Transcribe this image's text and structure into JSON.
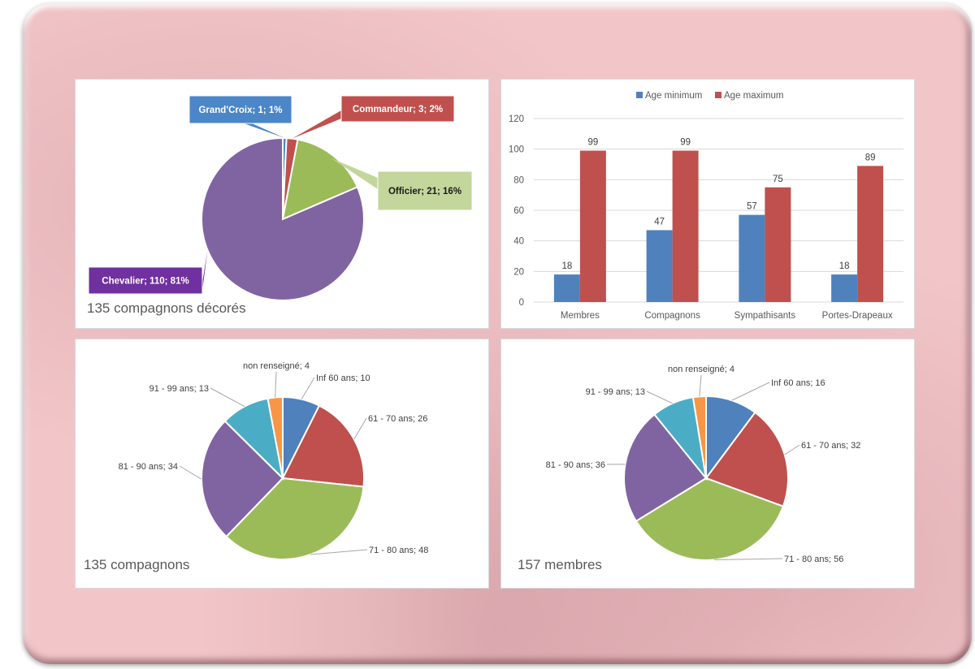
{
  "chart_data": [
    {
      "type": "pie",
      "caption": "135 compagnons décorés",
      "slices": [
        {
          "label": "Grand'Croix; 1; 1%",
          "name": "Grand'Croix",
          "value": 1,
          "percent": 1,
          "color": "#4a86c8",
          "text_color": "#ffffff"
        },
        {
          "label": "Commandeur; 3; 2%",
          "name": "Commandeur",
          "value": 3,
          "percent": 2,
          "color": "#c0504d",
          "text_color": "#ffffff"
        },
        {
          "label": "Officier; 21; 16%",
          "name": "Officier",
          "value": 21,
          "percent": 16,
          "color": "#9bbb59",
          "text_color": "#1a1a1a",
          "box_color": "#c3d69b"
        },
        {
          "label": "Chevalier; 110; 81%",
          "name": "Chevalier",
          "value": 110,
          "percent": 81,
          "color": "#8064a2",
          "text_color": "#ffffff",
          "box_color": "#7030a0"
        }
      ]
    },
    {
      "type": "bar",
      "categories": [
        "Membres",
        "Compagnons",
        "Sympathisants",
        "Portes-Drapeaux"
      ],
      "series": [
        {
          "name": "Age minimum",
          "values": [
            18,
            47,
            57,
            18
          ],
          "color": "#4f81bd"
        },
        {
          "name": "Age maximum",
          "values": [
            99,
            99,
            75,
            89
          ],
          "color": "#c0504d"
        }
      ],
      "title": "",
      "xlabel": "",
      "ylabel": "",
      "ylim": [
        0,
        120
      ],
      "yticks": [
        "0",
        "20",
        "40",
        "60",
        "80",
        "100",
        "120"
      ],
      "grid": true,
      "legend": "top"
    },
    {
      "type": "pie",
      "caption": "135 compagnons",
      "slices": [
        {
          "label": "Inf 60 ans; 10",
          "value": 10,
          "color": "#4f81bd"
        },
        {
          "label": "61 - 70 ans; 26",
          "value": 26,
          "color": "#c0504d"
        },
        {
          "label": "71 - 80 ans; 48",
          "value": 48,
          "color": "#9bbb59"
        },
        {
          "label": "81 - 90 ans; 34",
          "value": 34,
          "color": "#8064a2"
        },
        {
          "label": "91 - 99 ans; 13",
          "value": 13,
          "color": "#4bacc6"
        },
        {
          "label": "non renseigné; 4",
          "value": 4,
          "color": "#f79646"
        }
      ]
    },
    {
      "type": "pie",
      "caption": "157 membres",
      "slices": [
        {
          "label": "Inf 60 ans; 16",
          "value": 16,
          "color": "#4f81bd"
        },
        {
          "label": "61 - 70 ans; 32",
          "value": 32,
          "color": "#c0504d"
        },
        {
          "label": "71 - 80 ans; 56",
          "value": 56,
          "color": "#9bbb59"
        },
        {
          "label": "81 - 90 ans; 36",
          "value": 36,
          "color": "#8064a2"
        },
        {
          "label": "91 - 99 ans; 13",
          "value": 13,
          "color": "#4bacc6"
        },
        {
          "label": "non renseigné; 4",
          "value": 4,
          "color": "#f79646"
        }
      ]
    }
  ]
}
